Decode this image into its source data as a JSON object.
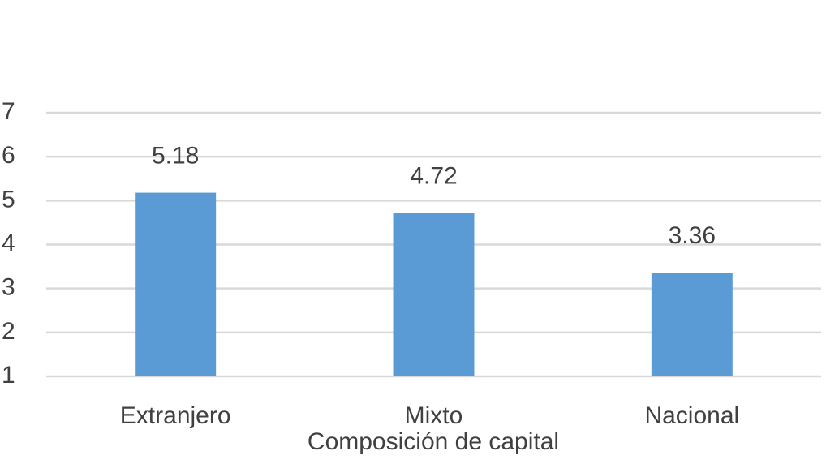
{
  "chart_data": {
    "type": "bar",
    "x_label": "Composición de capital",
    "categories": [
      "Extranjero",
      "Mixto",
      "Nacional"
    ],
    "values": [
      5.18,
      4.72,
      3.36
    ],
    "color": "#5b9bd5",
    "ylim": [
      1,
      7
    ],
    "yticks": [
      1,
      2,
      3,
      4,
      5,
      6,
      7
    ],
    "grid": true,
    "data_labels": true
  }
}
